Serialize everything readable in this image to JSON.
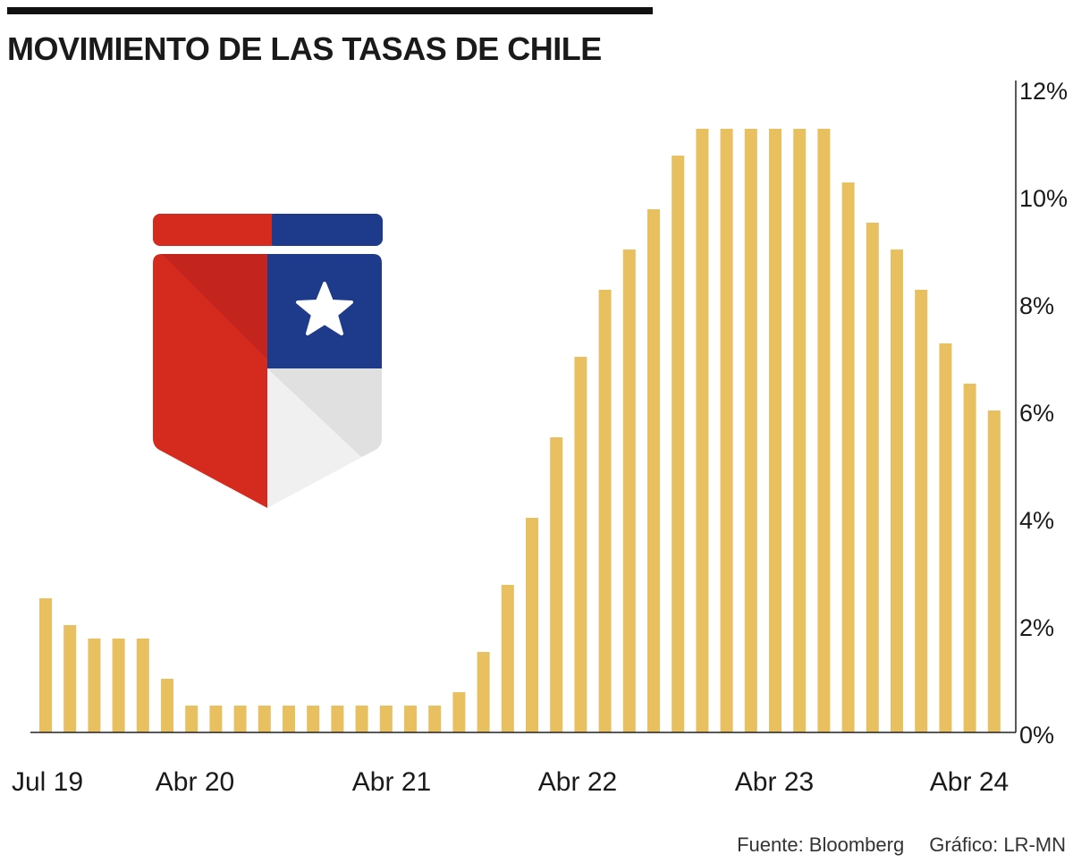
{
  "title": "MOVIMIENTO DE LAS TASAS DE CHILE",
  "footer": {
    "source": "Fuente: Bloomberg",
    "credit": "Gráfico: LR-MN"
  },
  "colors": {
    "bar": "#E8C060",
    "axis": "#222222",
    "text": "#1a1a1a",
    "flag_red": "#D52B1E",
    "flag_red_dark": "#C4241E",
    "flag_blue": "#1E3A8A",
    "flag_white": "#F0F0F0",
    "flag_white_shade": "#E0E0E0"
  },
  "icons": {
    "emblem": "chile-flag-shield-icon"
  },
  "chart_data": {
    "type": "bar",
    "title": "MOVIMIENTO DE LAS TASAS DE CHILE",
    "x_tick_labels": [
      "Jul 19",
      "Abr 20",
      "Abr 21",
      "Abr 22",
      "Abr 23",
      "Abr 24"
    ],
    "y_tick_labels": [
      "0%",
      "2%",
      "4%",
      "6%",
      "8%",
      "10%",
      "12%"
    ],
    "ylim": [
      0,
      12
    ],
    "y_axis_side": "right",
    "grid": false,
    "legend": "none",
    "values": [
      2.5,
      2.0,
      1.75,
      1.75,
      1.75,
      1.0,
      0.5,
      0.5,
      0.5,
      0.5,
      0.5,
      0.5,
      0.5,
      0.5,
      0.5,
      0.5,
      0.5,
      0.75,
      1.5,
      2.75,
      4.0,
      5.5,
      7.0,
      8.25,
      9.0,
      9.75,
      10.75,
      11.25,
      11.25,
      11.25,
      11.25,
      11.25,
      11.25,
      10.25,
      9.5,
      9.0,
      8.25,
      7.25,
      6.5,
      6.0
    ]
  }
}
